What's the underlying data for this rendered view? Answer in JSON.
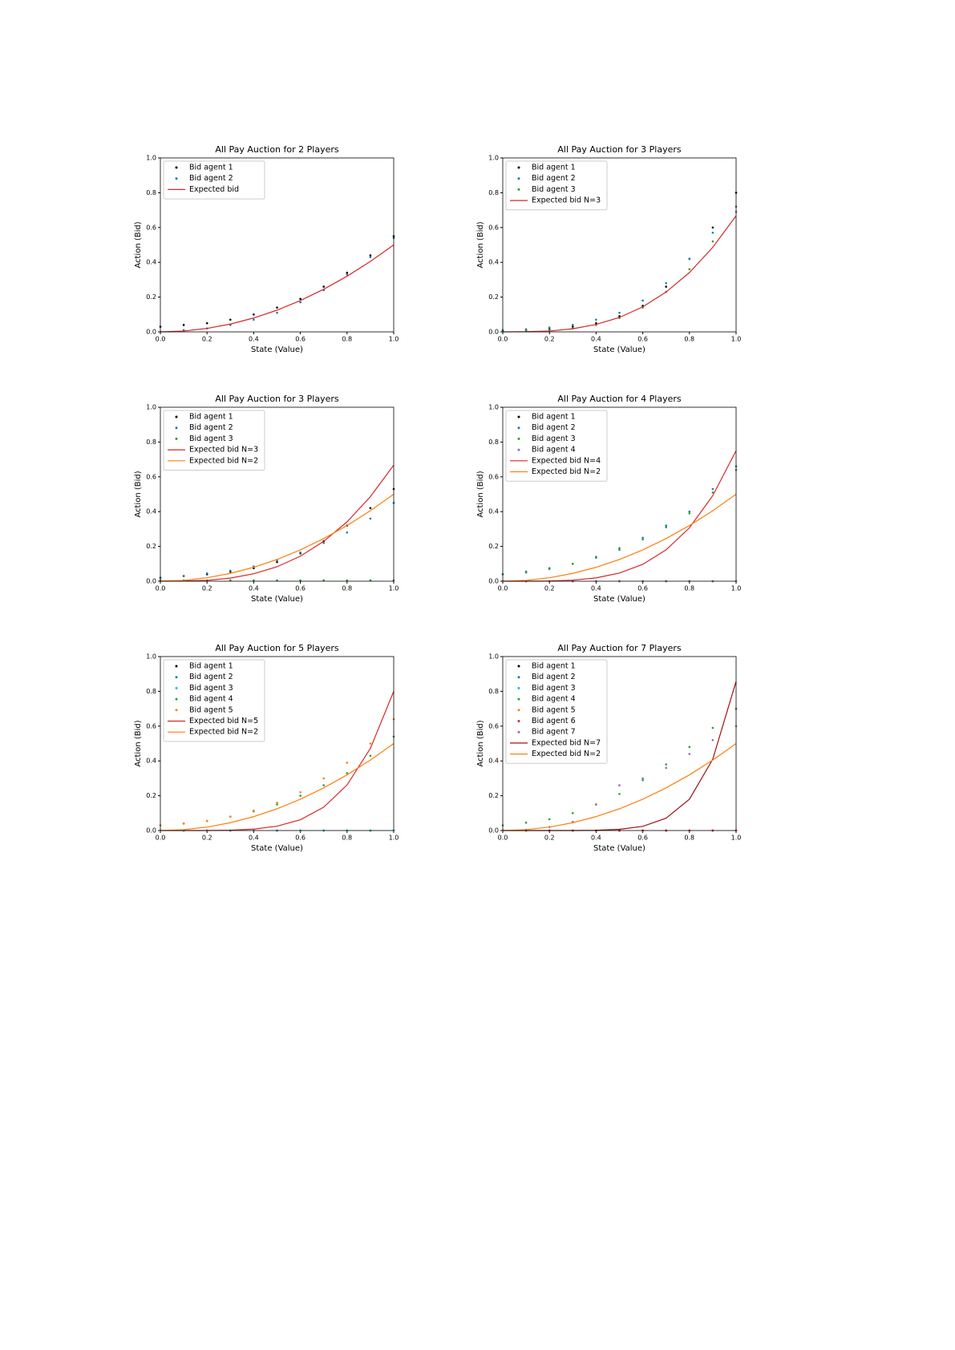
{
  "chart_data": [
    {
      "type": "line",
      "title": "All Pay Auction for 2 Players",
      "xlabel": "State (Value)",
      "ylabel": "Action (Bid)",
      "legend": "upper left",
      "x": [
        0,
        0.1,
        0.2,
        0.3,
        0.4,
        0.5,
        0.6,
        0.7,
        0.8,
        0.9,
        1
      ],
      "xlim": [
        0,
        1
      ],
      "ylim": [
        0,
        1
      ],
      "xticks": [
        {
          "value": 0,
          "label": "0.0"
        },
        0.2,
        0.4,
        0.6,
        0.8,
        {
          "value": 1,
          "label": "1.0"
        }
      ],
      "yticks": [
        {
          "value": 0,
          "label": "0.0"
        },
        0.2,
        0.4,
        0.6,
        0.8,
        {
          "value": 1,
          "label": "1.0"
        }
      ],
      "series": [
        {
          "name": "Bid agent 1",
          "type": "scatter",
          "color": "#000000",
          "values": [
            0.03,
            0.04,
            0.05,
            0.07,
            0.1,
            0.14,
            0.19,
            0.26,
            0.34,
            0.44,
            0.55
          ]
        },
        {
          "name": "Bid agent 2",
          "type": "scatter",
          "color": "#1f77b4",
          "values": [
            0,
            0.01,
            0.02,
            0.04,
            0.07,
            0.11,
            0.17,
            0.24,
            0.33,
            0.43,
            0.54
          ]
        },
        {
          "name": "Expected bid",
          "type": "line",
          "color": "#d62728",
          "values": [
            0,
            0.005,
            0.02,
            0.045,
            0.08,
            0.125,
            0.18,
            0.245,
            0.32,
            0.405,
            0.5
          ]
        }
      ]
    },
    {
      "type": "line",
      "title": "All Pay Auction for 3 Players",
      "xlabel": "State (Value)",
      "ylabel": "Action (Bid)",
      "legend": "upper left",
      "x": [
        0,
        0.1,
        0.2,
        0.3,
        0.4,
        0.5,
        0.6,
        0.7,
        0.8,
        0.9,
        1
      ],
      "xlim": [
        0,
        1
      ],
      "ylim": [
        0,
        1
      ],
      "xticks": [
        {
          "value": 0,
          "label": "0.0"
        },
        0.2,
        0.4,
        0.6,
        0.8,
        {
          "value": 1,
          "label": "1.0"
        }
      ],
      "yticks": [
        {
          "value": 0,
          "label": "0.0"
        },
        0.2,
        0.4,
        0.6,
        0.8,
        {
          "value": 1,
          "label": "1.0"
        }
      ],
      "series": [
        {
          "name": "Bid agent 1",
          "type": "scatter",
          "color": "#000000",
          "values": [
            0.005,
            0.01,
            0.015,
            0.03,
            0.05,
            0.09,
            0.15,
            0.26,
            0.42,
            0.6,
            0.8
          ]
        },
        {
          "name": "Bid agent 2",
          "type": "scatter",
          "color": "#1f77b4",
          "values": [
            0.01,
            0.015,
            0.025,
            0.04,
            0.07,
            0.11,
            0.18,
            0.28,
            0.42,
            0.57,
            0.72
          ]
        },
        {
          "name": "Bid agent 3",
          "type": "scatter",
          "color": "#2ca02c",
          "values": [
            0,
            0.005,
            0.01,
            0.02,
            0.04,
            0.08,
            0.14,
            0.23,
            0.36,
            0.52,
            0.69
          ]
        },
        {
          "name": "Expected bid N=3",
          "type": "line",
          "color": "#d62728",
          "values": [
            0,
            0.001,
            0.005,
            0.018,
            0.043,
            0.083,
            0.144,
            0.229,
            0.341,
            0.486,
            0.667
          ]
        }
      ]
    },
    {
      "type": "line",
      "title": "All Pay Auction for 3 Players",
      "xlabel": "State (Value)",
      "ylabel": "Action (Bid)",
      "legend": "upper left",
      "x": [
        0,
        0.1,
        0.2,
        0.3,
        0.4,
        0.5,
        0.6,
        0.7,
        0.8,
        0.9,
        1
      ],
      "xlim": [
        0,
        1
      ],
      "ylim": [
        0,
        1
      ],
      "xticks": [
        {
          "value": 0,
          "label": "0.0"
        },
        0.2,
        0.4,
        0.6,
        0.8,
        {
          "value": 1,
          "label": "1.0"
        }
      ],
      "yticks": [
        {
          "value": 0,
          "label": "0.0"
        },
        0.2,
        0.4,
        0.6,
        0.8,
        {
          "value": 1,
          "label": "1.0"
        }
      ],
      "series": [
        {
          "name": "Bid agent 1",
          "type": "scatter",
          "color": "#000000",
          "values": [
            0.02,
            0.03,
            0.04,
            0.055,
            0.075,
            0.11,
            0.16,
            0.23,
            0.32,
            0.42,
            0.53
          ]
        },
        {
          "name": "Bid agent 2",
          "type": "scatter",
          "color": "#1f77b4",
          "values": [
            0.02,
            0.03,
            0.045,
            0.06,
            0.085,
            0.12,
            0.165,
            0.22,
            0.28,
            0.36,
            0.45
          ]
        },
        {
          "name": "Bid agent 3",
          "type": "scatter",
          "color": "#2ca02c",
          "values": [
            0.005,
            0.005,
            0.005,
            0.005,
            0.005,
            0.005,
            0.005,
            0.005,
            0.005,
            0.005,
            0.005
          ]
        },
        {
          "name": "Expected bid N=3",
          "type": "line",
          "color": "#d62728",
          "values": [
            0,
            0.001,
            0.005,
            0.018,
            0.043,
            0.083,
            0.144,
            0.229,
            0.341,
            0.486,
            0.667
          ]
        },
        {
          "name": "Expected bid N=2",
          "type": "line",
          "color": "#ff7f0e",
          "values": [
            0,
            0.005,
            0.02,
            0.045,
            0.08,
            0.125,
            0.18,
            0.245,
            0.32,
            0.405,
            0.5
          ]
        }
      ]
    },
    {
      "type": "line",
      "title": "All Pay Auction for 4 Players",
      "xlabel": "State (Value)",
      "ylabel": "Action (Bid)",
      "legend": "upper left",
      "x": [
        0,
        0.1,
        0.2,
        0.3,
        0.4,
        0.5,
        0.6,
        0.7,
        0.8,
        0.9,
        1
      ],
      "xlim": [
        0,
        1
      ],
      "ylim": [
        0,
        1
      ],
      "xticks": [
        {
          "value": 0,
          "label": "0.0"
        },
        0.2,
        0.4,
        0.6,
        0.8,
        {
          "value": 1,
          "label": "1.0"
        }
      ],
      "yticks": [
        {
          "value": 0,
          "label": "0.0"
        },
        0.2,
        0.4,
        0.6,
        0.8,
        {
          "value": 1,
          "label": "1.0"
        }
      ],
      "series": [
        {
          "name": "Bid agent 1",
          "type": "scatter",
          "color": "#000000",
          "values": [
            0,
            0,
            0,
            0,
            0,
            0,
            0,
            0,
            0,
            0,
            0
          ]
        },
        {
          "name": "Bid agent 2",
          "type": "scatter",
          "color": "#1f77b4",
          "values": [
            0.04,
            0.055,
            0.075,
            0.1,
            0.14,
            0.19,
            0.25,
            0.32,
            0.4,
            0.53,
            0.66
          ]
        },
        {
          "name": "Bid agent 3",
          "type": "scatter",
          "color": "#2ca02c",
          "values": [
            0.04,
            0.05,
            0.07,
            0.1,
            0.135,
            0.18,
            0.24,
            0.31,
            0.39,
            0.51,
            0.64
          ]
        },
        {
          "name": "Bid agent 4",
          "type": "scatter",
          "color": "#9467bd",
          "values": [
            0,
            0,
            0,
            0,
            0,
            0,
            0,
            0,
            0,
            0,
            0
          ]
        },
        {
          "name": "Expected bid N=4",
          "type": "line",
          "color": "#d62728",
          "values": [
            0,
            0,
            0.001,
            0.006,
            0.019,
            0.047,
            0.097,
            0.18,
            0.307,
            0.492,
            0.75
          ]
        },
        {
          "name": "Expected bid N=2",
          "type": "line",
          "color": "#ff7f0e",
          "values": [
            0,
            0.005,
            0.02,
            0.045,
            0.08,
            0.125,
            0.18,
            0.245,
            0.32,
            0.405,
            0.5
          ]
        }
      ]
    },
    {
      "type": "line",
      "title": "All Pay Auction for 5 Players",
      "xlabel": "State (Value)",
      "ylabel": "Action (Bid)",
      "legend": "upper left",
      "x": [
        0,
        0.1,
        0.2,
        0.3,
        0.4,
        0.5,
        0.6,
        0.7,
        0.8,
        0.9,
        1
      ],
      "xlim": [
        0,
        1
      ],
      "ylim": [
        0,
        1
      ],
      "xticks": [
        {
          "value": 0,
          "label": "0.0"
        },
        0.2,
        0.4,
        0.6,
        0.8,
        {
          "value": 1,
          "label": "1.0"
        }
      ],
      "yticks": [
        {
          "value": 0,
          "label": "0.0"
        },
        0.2,
        0.4,
        0.6,
        0.8,
        {
          "value": 1,
          "label": "1.0"
        }
      ],
      "series": [
        {
          "name": "Bid agent 1",
          "type": "scatter",
          "color": "#000000",
          "values": [
            0,
            0,
            0,
            0,
            0,
            0,
            0,
            0,
            0,
            0,
            0
          ]
        },
        {
          "name": "Bid agent 2",
          "type": "scatter",
          "color": "#1f77b4",
          "values": [
            0,
            0,
            0,
            0,
            0,
            0,
            0,
            0,
            0,
            0,
            0
          ]
        },
        {
          "name": "Bid agent 3",
          "type": "scatter",
          "color": "#17becf",
          "values": [
            0,
            0,
            0,
            0,
            0,
            0,
            0,
            0,
            0,
            0,
            0
          ]
        },
        {
          "name": "Bid agent 4",
          "type": "scatter",
          "color": "#2ca02c",
          "values": [
            0.03,
            0.04,
            0.055,
            0.08,
            0.11,
            0.15,
            0.2,
            0.26,
            0.33,
            0.43,
            0.54
          ]
        },
        {
          "name": "Bid agent 5",
          "type": "scatter",
          "color": "#ff7f0e",
          "values": [
            0.03,
            0.04,
            0.055,
            0.08,
            0.115,
            0.16,
            0.22,
            0.3,
            0.39,
            0.5,
            0.64
          ]
        },
        {
          "name": "Expected bid N=5",
          "type": "line",
          "color": "#d62728",
          "values": [
            0,
            0,
            0,
            0.002,
            0.008,
            0.025,
            0.062,
            0.134,
            0.262,
            0.472,
            0.8
          ]
        },
        {
          "name": "Expected bid N=2",
          "type": "line",
          "color": "#ff7f0e",
          "values": [
            0,
            0.005,
            0.02,
            0.045,
            0.08,
            0.125,
            0.18,
            0.245,
            0.32,
            0.405,
            0.5
          ]
        }
      ]
    },
    {
      "type": "line",
      "title": "All Pay Auction for 7 Players",
      "xlabel": "State (Value)",
      "ylabel": "Action (Bid)",
      "legend": "upper left",
      "x": [
        0,
        0.1,
        0.2,
        0.3,
        0.4,
        0.5,
        0.6,
        0.7,
        0.8,
        0.9,
        1
      ],
      "xlim": [
        0,
        1
      ],
      "ylim": [
        0,
        1
      ],
      "xticks": [
        {
          "value": 0,
          "label": "0.0"
        },
        0.2,
        0.4,
        0.6,
        0.8,
        {
          "value": 1,
          "label": "1.0"
        }
      ],
      "yticks": [
        {
          "value": 0,
          "label": "0.0"
        },
        0.2,
        0.4,
        0.6,
        0.8,
        {
          "value": 1,
          "label": "1.0"
        }
      ],
      "series": [
        {
          "name": "Bid agent 1",
          "type": "scatter",
          "color": "#000000",
          "values": [
            0,
            0,
            0,
            0,
            0,
            0,
            0,
            0,
            0,
            0,
            0
          ]
        },
        {
          "name": "Bid agent 2",
          "type": "scatter",
          "color": "#1f77b4",
          "values": [
            0,
            0,
            0,
            0,
            0,
            0,
            0,
            0,
            0,
            0,
            0
          ]
        },
        {
          "name": "Bid agent 3",
          "type": "scatter",
          "color": "#17becf",
          "values": [
            0,
            0,
            0,
            0,
            0,
            0,
            0,
            0,
            0,
            0,
            0
          ]
        },
        {
          "name": "Bid agent 4",
          "type": "scatter",
          "color": "#2ca02c",
          "values": [
            0.03,
            0.045,
            0.065,
            0.1,
            0.15,
            0.21,
            0.29,
            0.38,
            0.48,
            0.59,
            0.7
          ]
        },
        {
          "name": "Bid agent 5",
          "type": "scatter",
          "color": "#ff7f0e",
          "values": [
            0,
            0,
            0,
            0,
            0,
            0,
            0,
            0,
            0,
            0,
            0
          ]
        },
        {
          "name": "Bid agent 6",
          "type": "scatter",
          "color": "#d62728",
          "values": [
            0,
            0,
            0,
            0,
            0,
            0,
            0,
            0,
            0,
            0,
            0
          ]
        },
        {
          "name": "Bid agent 7",
          "type": "scatter",
          "color": "#9467bd",
          "values": [
            0,
            0.005,
            0.02,
            0.05,
            0.15,
            0.26,
            0.3,
            0.36,
            0.44,
            0.52,
            0.6
          ]
        },
        {
          "name": "Expected bid N=7",
          "type": "line",
          "color": "#a01010",
          "values": [
            0,
            0,
            0,
            0,
            0.001,
            0.007,
            0.024,
            0.071,
            0.18,
            0.41,
            0.857
          ]
        },
        {
          "name": "Expected bid N=2",
          "type": "line",
          "color": "#ff7f0e",
          "values": [
            0,
            0.005,
            0.02,
            0.045,
            0.08,
            0.125,
            0.18,
            0.245,
            0.32,
            0.405,
            0.5
          ]
        }
      ]
    }
  ]
}
